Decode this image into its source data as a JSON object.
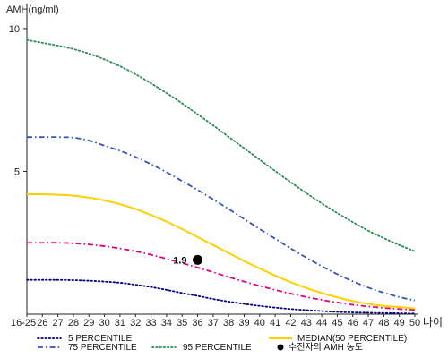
{
  "chart_data": {
    "type": "line",
    "ylabel": "AMH(ng/ml)",
    "xlabel": "나이",
    "ylim": [
      0,
      11
    ],
    "yticks": [
      5,
      10
    ],
    "categories": [
      "16-25",
      "26",
      "27",
      "28",
      "29",
      "30",
      "31",
      "32",
      "33",
      "34",
      "35",
      "36",
      "37",
      "38",
      "39",
      "40",
      "41",
      "42",
      "43",
      "44",
      "45",
      "46",
      "47",
      "48",
      "49",
      "50"
    ],
    "series": [
      {
        "name": "5 PERCENTILE",
        "color": "#000080",
        "dash": "dotted",
        "values": [
          1.2,
          1.2,
          1.2,
          1.19,
          1.17,
          1.14,
          1.1,
          1.03,
          0.95,
          0.85,
          0.74,
          0.64,
          0.53,
          0.44,
          0.36,
          0.29,
          0.23,
          0.18,
          0.14,
          0.11,
          0.08,
          0.06,
          0.05,
          0.04,
          0.03,
          0.02
        ]
      },
      {
        "name": "25 PERCENTILE",
        "color": "#e6007e",
        "dash": "dashdot",
        "values": [
          2.5,
          2.5,
          2.5,
          2.48,
          2.44,
          2.38,
          2.3,
          2.2,
          2.08,
          1.94,
          1.79,
          1.63,
          1.47,
          1.3,
          1.14,
          0.99,
          0.85,
          0.72,
          0.6,
          0.5,
          0.41,
          0.33,
          0.27,
          0.22,
          0.18,
          0.15
        ]
      },
      {
        "name": "MEDIAN(50 PERCENTILE)",
        "color": "#ffd000",
        "dash": "solid",
        "values": [
          4.2,
          4.2,
          4.18,
          4.15,
          4.08,
          3.98,
          3.85,
          3.68,
          3.47,
          3.24,
          2.98,
          2.7,
          2.42,
          2.14,
          1.86,
          1.6,
          1.35,
          1.12,
          0.92,
          0.74,
          0.59,
          0.46,
          0.36,
          0.29,
          0.25,
          0.2
        ]
      },
      {
        "name": "75 PERCENTILE",
        "color": "#3355bb",
        "dash": "dashdot",
        "values": [
          6.2,
          6.2,
          6.2,
          6.18,
          6.08,
          5.9,
          5.72,
          5.5,
          5.25,
          4.97,
          4.66,
          4.35,
          4.02,
          3.68,
          3.33,
          2.98,
          2.64,
          2.3,
          1.98,
          1.68,
          1.4,
          1.15,
          0.93,
          0.75,
          0.6,
          0.48
        ]
      },
      {
        "name": "95 PERCENTILE",
        "color": "#2e8b57",
        "dash": "dotted",
        "values": [
          9.6,
          9.5,
          9.4,
          9.28,
          9.12,
          8.92,
          8.68,
          8.4,
          8.08,
          7.74,
          7.38,
          7.0,
          6.61,
          6.21,
          5.81,
          5.41,
          5.01,
          4.62,
          4.24,
          3.88,
          3.54,
          3.22,
          2.92,
          2.66,
          2.42,
          2.2
        ]
      }
    ],
    "marker": {
      "name": "수진자의 AMH 농도",
      "x": "36",
      "y": 1.9,
      "label": "1.9"
    },
    "legend_position": "bottom"
  }
}
